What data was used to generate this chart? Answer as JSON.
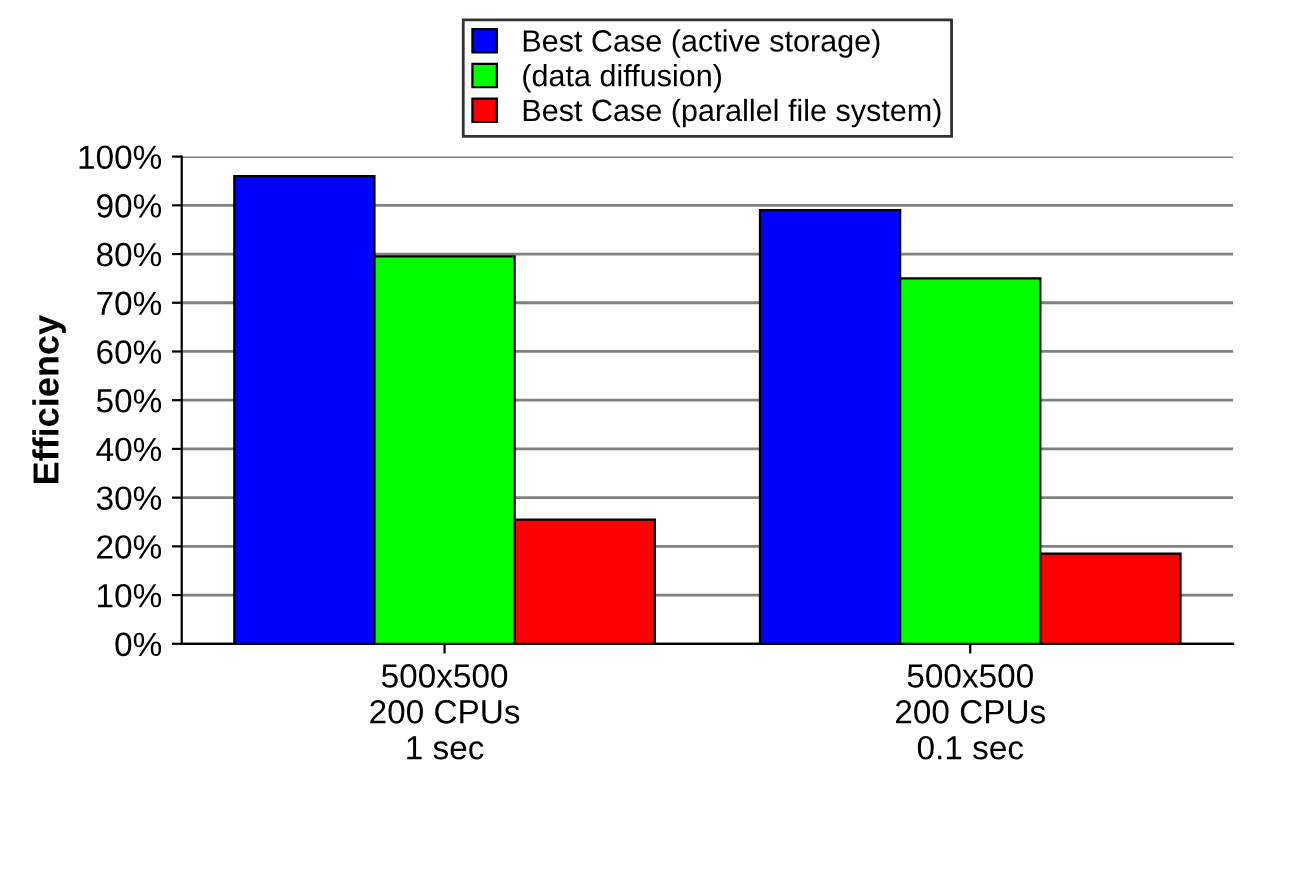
{
  "chart_data": {
    "type": "bar",
    "ylabel": "Efficiency",
    "categories": [
      "500x500\n200 CPUs\n1 sec",
      "500x500\n200 CPUs\n0.1 sec"
    ],
    "series": [
      {
        "name": "Best Case (active storage)",
        "color": "#0000ff",
        "values": [
          96,
          89
        ]
      },
      {
        "name": "(data diffusion)",
        "color": "#00ff00",
        "values": [
          79.5,
          75
        ]
      },
      {
        "name": "Best Case (parallel file system)",
        "color": "#ff0000",
        "values": [
          25.5,
          18.5
        ]
      }
    ],
    "ylim": [
      0,
      100
    ],
    "yticks": [
      {
        "value": 0,
        "label": "0%"
      },
      {
        "value": 10,
        "label": "10%"
      },
      {
        "value": 20,
        "label": "20%"
      },
      {
        "value": 30,
        "label": "30%"
      },
      {
        "value": 40,
        "label": "40%"
      },
      {
        "value": 50,
        "label": "50%"
      },
      {
        "value": 60,
        "label": "60%"
      },
      {
        "value": 70,
        "label": "70%"
      },
      {
        "value": 80,
        "label": "80%"
      },
      {
        "value": 90,
        "label": "90%"
      },
      {
        "value": 100,
        "label": "100%"
      }
    ],
    "grid": "y",
    "legend": "top"
  }
}
